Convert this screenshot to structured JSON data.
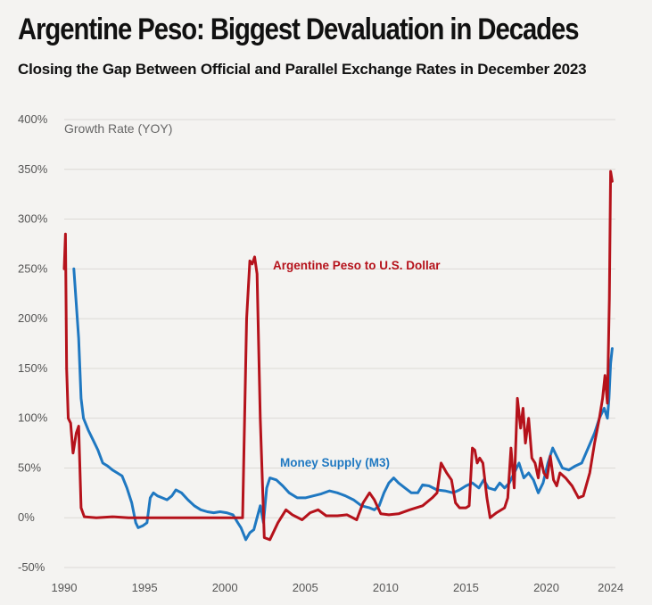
{
  "header": {
    "title": "Argentine Peso: Biggest Devaluation in Decades",
    "subtitle": "Closing the Gap Between Official and Parallel Exchange Rates in December 2023"
  },
  "colors": {
    "peso": "#b5121b",
    "m3": "#1f78c1",
    "grid": "#dcdad6",
    "background": "#f4f3f1"
  },
  "chart_data": {
    "type": "line",
    "title": "Argentine Peso: Biggest Devaluation in Decades",
    "subtitle": "Closing the Gap Between Official and Parallel Exchange Rates in December 2023",
    "ylabel": "Growth Rate (YOY)",
    "xlabel": "",
    "xlim": [
      1990,
      2024.3
    ],
    "ylim": [
      -50,
      400
    ],
    "xticks": [
      1990,
      1995,
      2000,
      2005,
      2010,
      2015,
      2020,
      2024
    ],
    "xtick_labels": [
      "1990",
      "1995",
      "2000",
      "2005",
      "2010",
      "2015",
      "2020",
      "2024"
    ],
    "yticks": [
      -50,
      0,
      50,
      100,
      150,
      200,
      250,
      300,
      350,
      400
    ],
    "ytick_labels": [
      "-50%",
      "0%",
      "50%",
      "100%",
      "150%",
      "200%",
      "250%",
      "300%",
      "350%",
      "400%"
    ],
    "grid": true,
    "series": [
      {
        "name": "Argentine Peso to U.S. Dollar",
        "color": "#b5121b",
        "points": [
          [
            1990.0,
            250
          ],
          [
            1990.08,
            285
          ],
          [
            1990.15,
            150
          ],
          [
            1990.25,
            100
          ],
          [
            1990.4,
            95
          ],
          [
            1990.55,
            65
          ],
          [
            1990.75,
            85
          ],
          [
            1990.9,
            92
          ],
          [
            1991.05,
            10
          ],
          [
            1991.25,
            1
          ],
          [
            1992.0,
            0
          ],
          [
            1993.0,
            1
          ],
          [
            1994.0,
            0
          ],
          [
            1995.0,
            0
          ],
          [
            2000.0,
            0
          ],
          [
            2001.1,
            0
          ],
          [
            2001.35,
            200
          ],
          [
            2001.55,
            258
          ],
          [
            2001.7,
            255
          ],
          [
            2001.85,
            262
          ],
          [
            2002.0,
            245
          ],
          [
            2002.2,
            100
          ],
          [
            2002.45,
            -20
          ],
          [
            2002.8,
            -22
          ],
          [
            2003.3,
            -5
          ],
          [
            2003.8,
            8
          ],
          [
            2004.2,
            3
          ],
          [
            2004.8,
            -2
          ],
          [
            2005.3,
            5
          ],
          [
            2005.8,
            8
          ],
          [
            2006.3,
            2
          ],
          [
            2007.0,
            2
          ],
          [
            2007.6,
            3
          ],
          [
            2008.2,
            -2
          ],
          [
            2008.6,
            15
          ],
          [
            2009.0,
            25
          ],
          [
            2009.3,
            18
          ],
          [
            2009.7,
            4
          ],
          [
            2010.2,
            3
          ],
          [
            2010.8,
            4
          ],
          [
            2011.5,
            8
          ],
          [
            2012.3,
            12
          ],
          [
            2012.9,
            20
          ],
          [
            2013.2,
            25
          ],
          [
            2013.45,
            55
          ],
          [
            2013.8,
            45
          ],
          [
            2014.1,
            38
          ],
          [
            2014.35,
            15
          ],
          [
            2014.6,
            10
          ],
          [
            2015.0,
            10
          ],
          [
            2015.2,
            12
          ],
          [
            2015.4,
            70
          ],
          [
            2015.55,
            68
          ],
          [
            2015.7,
            55
          ],
          [
            2015.85,
            60
          ],
          [
            2016.05,
            55
          ],
          [
            2016.3,
            20
          ],
          [
            2016.5,
            0
          ],
          [
            2016.9,
            5
          ],
          [
            2017.4,
            10
          ],
          [
            2017.6,
            20
          ],
          [
            2017.8,
            70
          ],
          [
            2018.0,
            30
          ],
          [
            2018.2,
            120
          ],
          [
            2018.4,
            90
          ],
          [
            2018.55,
            110
          ],
          [
            2018.7,
            75
          ],
          [
            2018.9,
            100
          ],
          [
            2019.1,
            60
          ],
          [
            2019.3,
            55
          ],
          [
            2019.5,
            40
          ],
          [
            2019.65,
            60
          ],
          [
            2019.85,
            45
          ],
          [
            2020.05,
            40
          ],
          [
            2020.25,
            62
          ],
          [
            2020.45,
            38
          ],
          [
            2020.65,
            32
          ],
          [
            2020.85,
            45
          ],
          [
            2021.2,
            40
          ],
          [
            2021.6,
            32
          ],
          [
            2022.0,
            20
          ],
          [
            2022.3,
            22
          ],
          [
            2022.7,
            45
          ],
          [
            2023.0,
            75
          ],
          [
            2023.3,
            100
          ],
          [
            2023.5,
            120
          ],
          [
            2023.65,
            143
          ],
          [
            2023.8,
            115
          ],
          [
            2023.92,
            220
          ],
          [
            2024.0,
            348
          ],
          [
            2024.1,
            338
          ]
        ]
      },
      {
        "name": "Money Supply (M3)",
        "color": "#1f78c1",
        "points": [
          [
            1990.6,
            250
          ],
          [
            1990.75,
            215
          ],
          [
            1990.9,
            180
          ],
          [
            1991.05,
            120
          ],
          [
            1991.2,
            100
          ],
          [
            1991.5,
            88
          ],
          [
            1991.8,
            78
          ],
          [
            1992.1,
            68
          ],
          [
            1992.4,
            55
          ],
          [
            1992.7,
            52
          ],
          [
            1993.0,
            48
          ],
          [
            1993.3,
            45
          ],
          [
            1993.6,
            42
          ],
          [
            1993.9,
            30
          ],
          [
            1994.2,
            15
          ],
          [
            1994.45,
            -5
          ],
          [
            1994.6,
            -10
          ],
          [
            1994.9,
            -8
          ],
          [
            1995.15,
            -5
          ],
          [
            1995.35,
            20
          ],
          [
            1995.55,
            25
          ],
          [
            1995.8,
            22
          ],
          [
            1996.1,
            20
          ],
          [
            1996.4,
            18
          ],
          [
            1996.7,
            22
          ],
          [
            1996.95,
            28
          ],
          [
            1997.3,
            25
          ],
          [
            1997.7,
            18
          ],
          [
            1998.1,
            12
          ],
          [
            1998.5,
            8
          ],
          [
            1998.9,
            6
          ],
          [
            1999.3,
            5
          ],
          [
            1999.7,
            6
          ],
          [
            2000.1,
            5
          ],
          [
            2000.5,
            3
          ],
          [
            2000.8,
            -5
          ],
          [
            2001.0,
            -10
          ],
          [
            2001.3,
            -22
          ],
          [
            2001.55,
            -15
          ],
          [
            2001.8,
            -12
          ],
          [
            2002.0,
            0
          ],
          [
            2002.2,
            12
          ],
          [
            2002.4,
            -5
          ],
          [
            2002.6,
            30
          ],
          [
            2002.8,
            40
          ],
          [
            2003.2,
            38
          ],
          [
            2003.6,
            32
          ],
          [
            2004.0,
            25
          ],
          [
            2004.5,
            20
          ],
          [
            2005.0,
            20
          ],
          [
            2005.5,
            22
          ],
          [
            2006.0,
            24
          ],
          [
            2006.5,
            27
          ],
          [
            2007.0,
            25
          ],
          [
            2007.5,
            22
          ],
          [
            2008.0,
            18
          ],
          [
            2008.5,
            12
          ],
          [
            2009.0,
            10
          ],
          [
            2009.3,
            8
          ],
          [
            2009.6,
            12
          ],
          [
            2009.9,
            25
          ],
          [
            2010.2,
            35
          ],
          [
            2010.5,
            40
          ],
          [
            2010.8,
            35
          ],
          [
            2011.2,
            30
          ],
          [
            2011.6,
            25
          ],
          [
            2012.0,
            25
          ],
          [
            2012.3,
            33
          ],
          [
            2012.7,
            32
          ],
          [
            2013.2,
            28
          ],
          [
            2013.7,
            27
          ],
          [
            2014.2,
            25
          ],
          [
            2014.6,
            28
          ],
          [
            2015.0,
            32
          ],
          [
            2015.4,
            35
          ],
          [
            2015.8,
            30
          ],
          [
            2016.1,
            38
          ],
          [
            2016.4,
            30
          ],
          [
            2016.8,
            28
          ],
          [
            2017.1,
            35
          ],
          [
            2017.4,
            30
          ],
          [
            2017.7,
            35
          ],
          [
            2018.0,
            45
          ],
          [
            2018.3,
            55
          ],
          [
            2018.6,
            40
          ],
          [
            2018.9,
            45
          ],
          [
            2019.2,
            38
          ],
          [
            2019.5,
            25
          ],
          [
            2019.8,
            35
          ],
          [
            2020.1,
            55
          ],
          [
            2020.4,
            70
          ],
          [
            2020.7,
            60
          ],
          [
            2021.0,
            50
          ],
          [
            2021.4,
            48
          ],
          [
            2021.8,
            52
          ],
          [
            2022.2,
            55
          ],
          [
            2022.6,
            70
          ],
          [
            2023.0,
            85
          ],
          [
            2023.3,
            100
          ],
          [
            2023.6,
            110
          ],
          [
            2023.8,
            100
          ],
          [
            2023.9,
            120
          ],
          [
            2024.0,
            155
          ],
          [
            2024.1,
            170
          ]
        ]
      }
    ],
    "annotations": [
      "Argentine Peso to U.S. Dollar",
      "Money Supply (M3)"
    ]
  }
}
